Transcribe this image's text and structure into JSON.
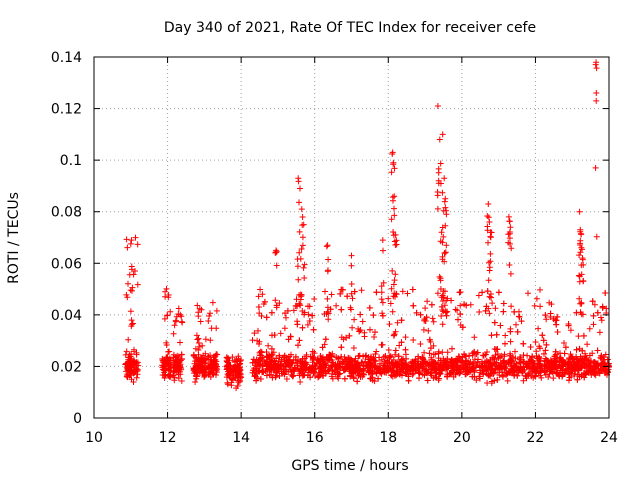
{
  "chart_data": {
    "type": "scatter",
    "title": "Day 340 of 2021, Rate Of TEC Index for receiver cefe",
    "xlabel": "GPS time / hours",
    "ylabel": "ROTI / TECUs",
    "xlim": [
      10,
      24
    ],
    "ylim": [
      0,
      0.14
    ],
    "xticks": [
      "10",
      "12",
      "14",
      "16",
      "18",
      "20",
      "22",
      "24"
    ],
    "yticks": [
      "0",
      "0.02",
      "0.04",
      "0.06",
      "0.08",
      "0.1",
      "0.12",
      "0.14"
    ],
    "grid": true,
    "marker": "+",
    "color": "#ff0000",
    "series": [
      {
        "name": "ROTI",
        "clusters": [
          {
            "x0": 10.85,
            "x1": 11.2,
            "base": 0.02,
            "peak": 0.07
          },
          {
            "x0": 11.85,
            "x1": 12.1,
            "base": 0.02,
            "peak": 0.052
          },
          {
            "x0": 12.15,
            "x1": 12.4,
            "base": 0.02,
            "peak": 0.045
          },
          {
            "x0": 12.7,
            "x1": 13.05,
            "base": 0.02,
            "peak": 0.044
          },
          {
            "x0": 13.1,
            "x1": 13.35,
            "base": 0.02,
            "peak": 0.047
          },
          {
            "x0": 13.6,
            "x1": 14.0,
            "base": 0.018,
            "peak": 0.024
          },
          {
            "x0": 14.3,
            "x1": 24.0,
            "base": 0.02,
            "peak": 0.05
          }
        ],
        "peaks": [
          {
            "x": 11.02,
            "y": 0.069
          },
          {
            "x": 14.95,
            "y": 0.065
          },
          {
            "x": 15.55,
            "y": 0.093
          },
          {
            "x": 15.6,
            "y": 0.089
          },
          {
            "x": 15.65,
            "y": 0.081
          },
          {
            "x": 15.7,
            "y": 0.075
          },
          {
            "x": 16.35,
            "y": 0.067
          },
          {
            "x": 17.0,
            "y": 0.063
          },
          {
            "x": 17.85,
            "y": 0.069
          },
          {
            "x": 18.12,
            "y": 0.103
          },
          {
            "x": 18.14,
            "y": 0.099
          },
          {
            "x": 18.16,
            "y": 0.086
          },
          {
            "x": 18.2,
            "y": 0.071
          },
          {
            "x": 19.35,
            "y": 0.121
          },
          {
            "x": 19.4,
            "y": 0.108
          },
          {
            "x": 19.48,
            "y": 0.11
          },
          {
            "x": 19.52,
            "y": 0.093
          },
          {
            "x": 19.55,
            "y": 0.085
          },
          {
            "x": 19.58,
            "y": 0.079
          },
          {
            "x": 19.45,
            "y": 0.072
          },
          {
            "x": 20.72,
            "y": 0.083
          },
          {
            "x": 20.75,
            "y": 0.076
          },
          {
            "x": 20.78,
            "y": 0.072
          },
          {
            "x": 21.28,
            "y": 0.078
          },
          {
            "x": 21.32,
            "y": 0.074
          },
          {
            "x": 23.2,
            "y": 0.08
          },
          {
            "x": 23.22,
            "y": 0.073
          },
          {
            "x": 23.25,
            "y": 0.066
          },
          {
            "x": 23.28,
            "y": 0.062
          },
          {
            "x": 23.65,
            "y": 0.138
          }
        ]
      }
    ]
  }
}
